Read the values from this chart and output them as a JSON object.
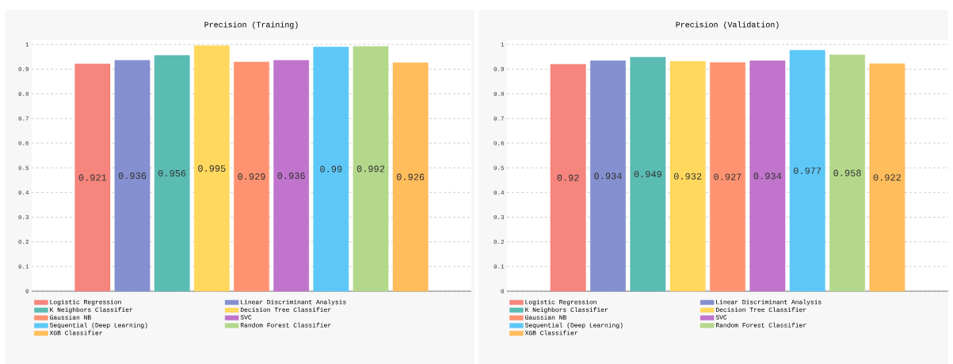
{
  "chart_data": [
    {
      "type": "bar",
      "title": "Precision (Training)",
      "categories": [
        null
      ],
      "series": [
        {
          "name": "Logistic Regression",
          "color": "#f57a72",
          "values": [
            0.921
          ]
        },
        {
          "name": "Linear Discriminant Analysis",
          "color": "#7986cb",
          "values": [
            0.936
          ]
        },
        {
          "name": "K Neighbors Classifier",
          "color": "#4db6ac",
          "values": [
            0.956
          ]
        },
        {
          "name": "Decision Tree Classifier",
          "color": "#ffd54f",
          "values": [
            0.995
          ]
        },
        {
          "name": "Gaussian NB",
          "color": "#ff8a65",
          "values": [
            0.929
          ]
        },
        {
          "name": "SVC",
          "color": "#ba68c8",
          "values": [
            0.936
          ]
        },
        {
          "name": "Sequential (Deep Learning)",
          "color": "#4fc3f7",
          "values": [
            0.99
          ]
        },
        {
          "name": "Random Forest Classifier",
          "color": "#aed581",
          "values": [
            0.992
          ]
        },
        {
          "name": "XGB Classifier",
          "color": "#ffb74d",
          "values": [
            0.926
          ]
        }
      ],
      "ylim": [
        0,
        1.02
      ],
      "yticks": [
        0,
        0.1,
        0.2,
        0.3,
        0.4,
        0.5,
        0.6,
        0.7,
        0.8,
        0.9,
        1
      ],
      "grid": "y",
      "legend": "bottom",
      "data_labels": true
    },
    {
      "type": "bar",
      "title": "Precision (Validation)",
      "categories": [
        null
      ],
      "series": [
        {
          "name": "Logistic Regression",
          "color": "#f57a72",
          "values": [
            0.92
          ]
        },
        {
          "name": "Linear Discriminant Analysis",
          "color": "#7986cb",
          "values": [
            0.934
          ]
        },
        {
          "name": "K Neighbors Classifier",
          "color": "#4db6ac",
          "values": [
            0.949
          ]
        },
        {
          "name": "Decision Tree Classifier",
          "color": "#ffd54f",
          "values": [
            0.932
          ]
        },
        {
          "name": "Gaussian NB",
          "color": "#ff8a65",
          "values": [
            0.927
          ]
        },
        {
          "name": "SVC",
          "color": "#ba68c8",
          "values": [
            0.934
          ]
        },
        {
          "name": "Sequential (Deep Learning)",
          "color": "#4fc3f7",
          "values": [
            0.977
          ]
        },
        {
          "name": "Random Forest Classifier",
          "color": "#aed581",
          "values": [
            0.958
          ]
        },
        {
          "name": "XGB Classifier",
          "color": "#ffb74d",
          "values": [
            0.922
          ]
        }
      ],
      "ylim": [
        0,
        1.02
      ],
      "yticks": [
        0,
        0.1,
        0.2,
        0.3,
        0.4,
        0.5,
        0.6,
        0.7,
        0.8,
        0.9,
        1
      ],
      "grid": "y",
      "legend": "bottom",
      "data_labels": true
    }
  ]
}
